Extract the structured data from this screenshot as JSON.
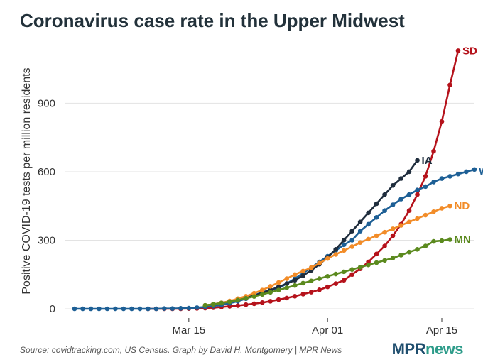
{
  "title": "Coronavirus case rate in the Upper Midwest",
  "source": "Source: covidtracking.com, US Census. Graph by David H. Montgomery | MPR News",
  "logo": {
    "mpr": "MPR",
    "news": "news"
  },
  "chart_data": {
    "type": "line",
    "title": "Coronavirus case rate in the Upper Midwest",
    "ylabel": "Positive COVID-19 tests per million residents",
    "xlabel": "",
    "ylim": [
      0,
      1150
    ],
    "yticks": [
      0,
      300,
      600,
      900
    ],
    "x_day_range": [
      1,
      46
    ],
    "xticks": [
      {
        "label": "Mar 15",
        "day": 15
      },
      {
        "label": "Apr 01",
        "day": 32
      },
      {
        "label": "Apr 15",
        "day": 46
      }
    ],
    "grid": "horizontal",
    "legend": "direct labels at line ends",
    "series": [
      {
        "name": "SD",
        "color": "#b5121b",
        "start_day": 10,
        "values": [
          0,
          0,
          0,
          0,
          0,
          1,
          2,
          3,
          5,
          8,
          11,
          14,
          18,
          22,
          27,
          33,
          40,
          47,
          55,
          64,
          73,
          83,
          96,
          110,
          125,
          150,
          175,
          205,
          240,
          275,
          320,
          370,
          430,
          500,
          580,
          690,
          820,
          980,
          1130
        ]
      },
      {
        "name": "WI",
        "color": "#1d5f95",
        "start_day": 1,
        "values": [
          0,
          0,
          0,
          0,
          0,
          0,
          0,
          0,
          0,
          0,
          0,
          1,
          1,
          2,
          3,
          5,
          8,
          12,
          17,
          24,
          33,
          44,
          58,
          73,
          82,
          90,
          110,
          132,
          156,
          180,
          205,
          230,
          255,
          280,
          300,
          340,
          370,
          400,
          430,
          455,
          480,
          500,
          520,
          535,
          555,
          570,
          580,
          590,
          600,
          610
        ]
      },
      {
        "name": "IA",
        "color": "#1f2d3d",
        "start_day": 17,
        "values": [
          15,
          20,
          26,
          33,
          40,
          48,
          58,
          70,
          82,
          96,
          110,
          125,
          145,
          168,
          195,
          225,
          260,
          300,
          340,
          380,
          420,
          460,
          500,
          540,
          570,
          600,
          650
        ]
      },
      {
        "name": "ND",
        "color": "#f28c28",
        "start_day": 17,
        "values": [
          15,
          20,
          26,
          34,
          44,
          55,
          68,
          82,
          98,
          115,
          132,
          150,
          165,
          180,
          200,
          220,
          238,
          255,
          272,
          290,
          305,
          320,
          335,
          350,
          365,
          380,
          395,
          410,
          425,
          440,
          450
        ]
      },
      {
        "name": "MN",
        "color": "#5b8a1e",
        "start_day": 17,
        "values": [
          15,
          20,
          25,
          31,
          38,
          46,
          54,
          63,
          72,
          82,
          92,
          102,
          112,
          122,
          132,
          142,
          152,
          162,
          172,
          182,
          192,
          202,
          212,
          222,
          235,
          248,
          260,
          275,
          295,
          298,
          303
        ]
      }
    ]
  }
}
